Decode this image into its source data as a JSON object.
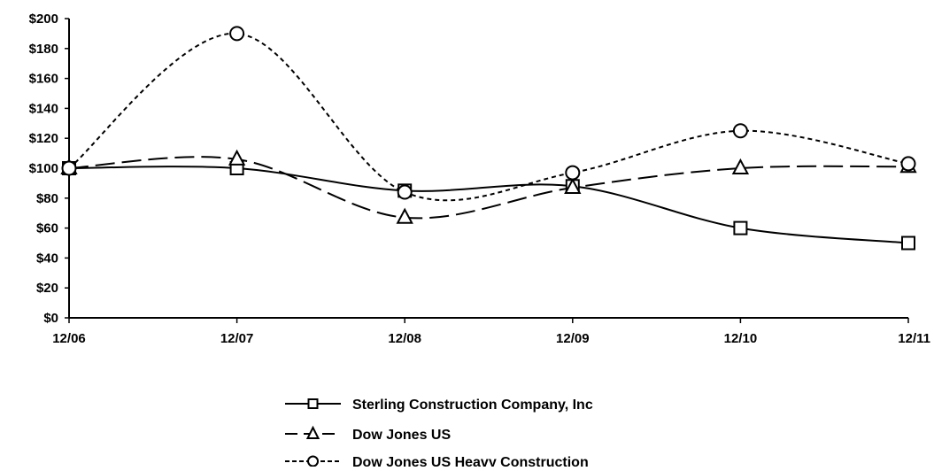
{
  "chart_data": {
    "type": "line",
    "title": "",
    "xlabel": "",
    "ylabel": "",
    "categories": [
      "12/06",
      "12/07",
      "12/08",
      "12/09",
      "12/10",
      "12/11"
    ],
    "y_tick_labels": [
      "$0",
      "$20",
      "$40",
      "$60",
      "$80",
      "$100",
      "$120",
      "$140",
      "$160",
      "$180",
      "$200"
    ],
    "ylim": [
      0,
      200
    ],
    "y_step": 20,
    "grid": false,
    "legend_position": "bottom-center",
    "series": [
      {
        "name": "Sterling Construction Company, Inc",
        "values": [
          100,
          100,
          85,
          88,
          60,
          50
        ],
        "marker": "square",
        "line_style": "solid",
        "color": "#000000"
      },
      {
        "name": "Dow Jones US",
        "values": [
          100,
          106,
          67,
          87,
          100,
          101
        ],
        "marker": "triangle",
        "line_style": "long-dash",
        "color": "#000000"
      },
      {
        "name": "Dow Jones US Heavy Construction",
        "values": [
          100,
          190,
          84,
          97,
          125,
          103
        ],
        "marker": "circle",
        "line_style": "short-dash",
        "color": "#000000"
      }
    ]
  }
}
